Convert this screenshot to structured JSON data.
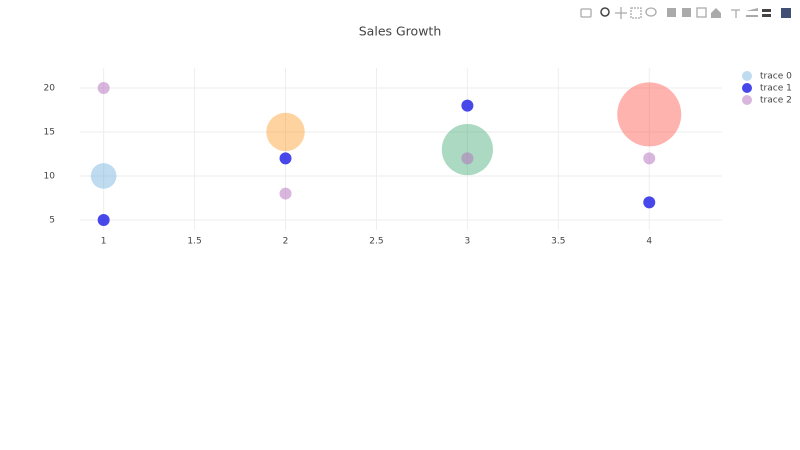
{
  "chart_data": {
    "type": "scatter",
    "title": "Sales Growth",
    "series": [
      {
        "name": "trace 0",
        "x": [
          1,
          2,
          3,
          4
        ],
        "values": [
          10,
          15,
          13,
          17
        ],
        "sizes": [
          40,
          60,
          80,
          100
        ],
        "colors": [
          "rgb(93,164,214)",
          "rgb(255,144,14)",
          "rgb(44,160,101)",
          "rgb(255,65,54)"
        ],
        "opacity": 0.4
      },
      {
        "name": "trace 1",
        "x": [
          1,
          2,
          3,
          4
        ],
        "values": [
          5,
          12,
          18,
          7
        ],
        "color": "rgb(40,40,230)",
        "opacity": 0.85
      },
      {
        "name": "trace 2",
        "x": [
          1,
          2,
          3,
          4
        ],
        "values": [
          20,
          8,
          12,
          12
        ],
        "color": "rgb(180,110,190)",
        "opacity": 0.5
      }
    ],
    "xlim": [
      0.87,
      4.4
    ],
    "xticks": [
      1,
      1.5,
      2,
      2.5,
      3,
      3.5,
      4
    ],
    "ylim": [
      3.86,
      22.27
    ],
    "yticks": [
      5,
      10,
      15,
      20
    ],
    "grid": true,
    "legend": "top-right"
  }
}
